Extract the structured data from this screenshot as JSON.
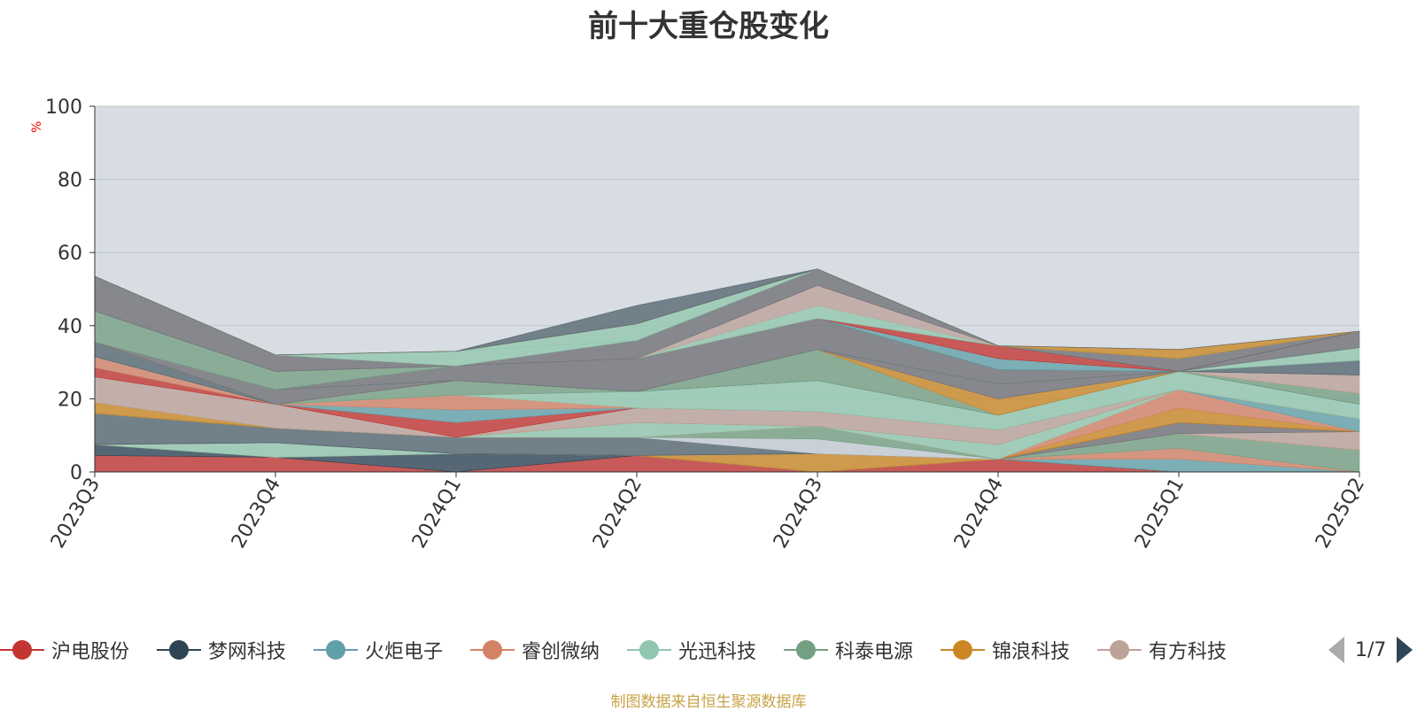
{
  "chart_data": {
    "type": "area",
    "title": "前十大重仓股变化",
    "ylabel": "%",
    "ylim": [
      0,
      100
    ],
    "yticks": [
      0,
      20,
      40,
      60,
      80,
      100
    ],
    "categories": [
      "2023Q3",
      "2023Q4",
      "2024Q1",
      "2024Q2",
      "2024Q3",
      "2024Q4",
      "2025Q1",
      "2025Q2"
    ],
    "stacked": true,
    "grid": true,
    "plot_background": "#d8dde4",
    "series": [
      {
        "name": "沪电股份",
        "color": "#c23531",
        "values": [
          4.5,
          4.0,
          0,
          4.5,
          0,
          3.5,
          0,
          0
        ]
      },
      {
        "name": "梦网科技",
        "color": "#2f4554",
        "values": [
          3.0,
          0,
          5.0,
          0,
          0,
          0,
          0,
          0
        ]
      },
      {
        "name": "火炬电子",
        "color": "#61a0a8",
        "values": [
          0,
          0,
          0,
          0,
          0,
          0,
          3.5,
          0
        ]
      },
      {
        "name": "睿创微纳",
        "color": "#d48265",
        "values": [
          0,
          0,
          0,
          0,
          0,
          0,
          3.0,
          0
        ]
      },
      {
        "name": "光迅科技",
        "color": "#91c7ae",
        "values": [
          0,
          4.0,
          0,
          0,
          0,
          0,
          0,
          0
        ]
      },
      {
        "name": "科泰电源",
        "color": "#749f83",
        "values": [
          0,
          0,
          0,
          0,
          0,
          0,
          4.0,
          6.0
        ]
      },
      {
        "name": "锦浪科技",
        "color": "#ca8622",
        "values": [
          0,
          0,
          0,
          0,
          5.0,
          0,
          0,
          0
        ]
      },
      {
        "name": "有方科技",
        "color": "#bda29a",
        "values": [
          0,
          0,
          0,
          0,
          0,
          0,
          0,
          5.0
        ]
      },
      {
        "name": "",
        "color": "#6e7074",
        "values": [
          0,
          0,
          0,
          0,
          0,
          0,
          3.0,
          0
        ]
      },
      {
        "name": "",
        "color": "#546570",
        "values": [
          8.5,
          4.0,
          4.5,
          5.0,
          0,
          0,
          0,
          0
        ]
      },
      {
        "name": "",
        "color": "#c4ccd3",
        "values": [
          0,
          0,
          0,
          0,
          4.0,
          0,
          0,
          0
        ]
      },
      {
        "name": "",
        "color": "#749f83",
        "values": [
          0,
          0,
          0,
          0,
          3.5,
          0,
          0,
          0
        ]
      },
      {
        "name": "",
        "color": "#c23531",
        "values": [
          0,
          0,
          0,
          0,
          0,
          0,
          0,
          0
        ]
      },
      {
        "name": "",
        "color": "#ca8622",
        "values": [
          0,
          0,
          0,
          0,
          0,
          0,
          4.0,
          0
        ]
      },
      {
        "name": "",
        "color": "#d48265",
        "values": [
          0,
          0,
          0,
          0,
          0,
          0,
          5.0,
          0
        ]
      },
      {
        "name": "",
        "color": "#91c7ae",
        "values": [
          0,
          0,
          0,
          4.0,
          0,
          4.0,
          0,
          0
        ]
      },
      {
        "name": "",
        "color": "#61a0a8",
        "values": [
          0,
          0,
          0,
          0,
          0,
          0,
          0,
          3.5
        ]
      },
      {
        "name": "",
        "color": "#ca8622",
        "values": [
          3.0,
          0,
          0,
          0,
          0,
          0,
          0,
          0
        ]
      },
      {
        "name": "",
        "color": "#bda29a",
        "values": [
          7.0,
          6.5,
          0,
          4.0,
          4.0,
          4.0,
          0,
          0
        ]
      },
      {
        "name": "",
        "color": "#c23531",
        "values": [
          2.5,
          0,
          4.0,
          0,
          0,
          0,
          0,
          0
        ]
      },
      {
        "name": "",
        "color": "#61a0a8",
        "values": [
          0,
          0,
          3.5,
          0,
          0,
          0,
          0,
          0
        ]
      },
      {
        "name": "",
        "color": "#d48265",
        "values": [
          3.0,
          0,
          4.0,
          0,
          0,
          0,
          0,
          0
        ]
      },
      {
        "name": "",
        "color": "#91c7ae",
        "values": [
          0,
          0,
          0,
          4.5,
          8.5,
          4.0,
          5.0,
          4.0
        ]
      },
      {
        "name": "",
        "color": "#749f83",
        "values": [
          0,
          0,
          4.0,
          0,
          0,
          0,
          0,
          0
        ]
      },
      {
        "name": "",
        "color": "#546570",
        "values": [
          4.0,
          0,
          0,
          0,
          0,
          0,
          0,
          0
        ]
      },
      {
        "name": "",
        "color": "#749f83",
        "values": [
          0,
          0,
          0,
          0,
          8.5,
          0,
          0,
          3.0
        ]
      },
      {
        "name": "",
        "color": "#ca8622",
        "values": [
          0,
          0,
          0,
          0,
          0,
          4.5,
          0,
          0
        ]
      },
      {
        "name": "",
        "color": "#bda29a",
        "values": [
          0,
          0,
          0,
          0,
          0,
          0,
          0,
          5.0
        ]
      },
      {
        "name": "",
        "color": "#6e7074",
        "values": [
          0,
          4.0,
          0,
          0,
          0,
          4.0,
          0,
          0
        ]
      },
      {
        "name": "",
        "color": "#546570",
        "values": [
          0,
          0,
          0,
          0,
          0,
          0,
          0,
          4.0
        ]
      },
      {
        "name": "",
        "color": "#91c7ae",
        "values": [
          0,
          0,
          0,
          0,
          0,
          0,
          0,
          3.5
        ]
      },
      {
        "name": "",
        "color": "#6e7074",
        "values": [
          0,
          0,
          4.0,
          9.0,
          8.5,
          4.0,
          0,
          4.5
        ]
      },
      {
        "name": "",
        "color": "#749f83",
        "values": [
          8.5,
          5.0,
          0,
          0,
          0,
          0,
          0,
          0
        ]
      },
      {
        "name": "",
        "color": "#6e7074",
        "values": [
          0,
          0,
          0,
          0,
          0,
          0,
          0,
          0
        ]
      },
      {
        "name": "",
        "color": "#61a0a8",
        "values": [
          0,
          0,
          0,
          0,
          0,
          3.0,
          0,
          0
        ]
      },
      {
        "name": "",
        "color": "#c23531",
        "values": [
          0,
          0,
          0,
          0,
          0,
          3.5,
          0,
          0
        ]
      },
      {
        "name": "",
        "color": "#6e7074",
        "values": [
          0,
          0,
          0,
          0,
          0,
          0,
          3.5,
          0
        ]
      },
      {
        "name": "",
        "color": "#91c7ae",
        "values": [
          0,
          0,
          0,
          0,
          3.5,
          0,
          0,
          0
        ]
      },
      {
        "name": "",
        "color": "#bda29a",
        "values": [
          0,
          0,
          0,
          0,
          5.5,
          0,
          0,
          0
        ]
      },
      {
        "name": "",
        "color": "#6e7074",
        "values": [
          9.5,
          4.5,
          0,
          5.0,
          4.5,
          0,
          0,
          0
        ]
      },
      {
        "name": "",
        "color": "#91c7ae",
        "values": [
          0,
          0,
          4.0,
          0,
          0,
          0,
          0,
          0
        ]
      },
      {
        "name": "",
        "color": "#91c7ae",
        "values": [
          0,
          0,
          0,
          4.5,
          0,
          0,
          0,
          0
        ]
      },
      {
        "name": "",
        "color": "#ca8622",
        "values": [
          0,
          0,
          0,
          0,
          0,
          0,
          2.5,
          0
        ]
      },
      {
        "name": "",
        "color": "#546570",
        "values": [
          0,
          0,
          0,
          5.0,
          0,
          0,
          0,
          0
        ]
      }
    ]
  },
  "legend": {
    "items": [
      {
        "label": "沪电股份",
        "color": "#c23531"
      },
      {
        "label": "梦网科技",
        "color": "#2f4554"
      },
      {
        "label": "火炬电子",
        "color": "#61a0a8"
      },
      {
        "label": "睿创微纳",
        "color": "#d48265"
      },
      {
        "label": "光迅科技",
        "color": "#91c7ae"
      },
      {
        "label": "科泰电源",
        "color": "#749f83"
      },
      {
        "label": "锦浪科技",
        "color": "#ca8622"
      },
      {
        "label": "有方科技",
        "color": "#bda29a"
      },
      {
        "label": "",
        "color": "#6e7074"
      }
    ],
    "page_text": "1/7"
  },
  "source_note": "制图数据来自恒生聚源数据库"
}
